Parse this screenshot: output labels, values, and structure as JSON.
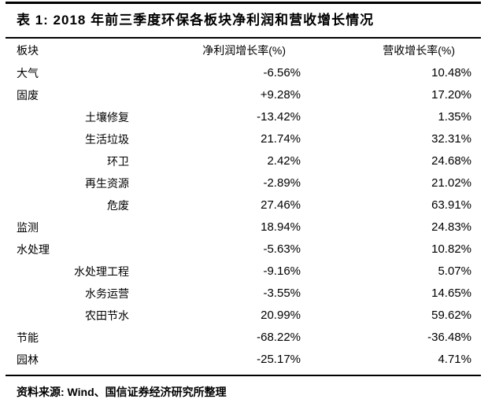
{
  "table": {
    "title": "表 1: 2018 年前三季度环保各板块净利润和营收增长情况",
    "columns": {
      "sector": "板块",
      "net_profit_growth": "净利润增长率(%)",
      "revenue_growth": "营收增长率(%)"
    },
    "rows": [
      {
        "sector": "大气",
        "level": 0,
        "net_profit": "-6.56%",
        "revenue": "10.48%"
      },
      {
        "sector": "固废",
        "level": 0,
        "net_profit": "+9.28%",
        "revenue": "17.20%"
      },
      {
        "sector": "土壤修复",
        "level": 1,
        "net_profit": "-13.42%",
        "revenue": "1.35%"
      },
      {
        "sector": "生活垃圾",
        "level": 1,
        "net_profit": "21.74%",
        "revenue": "32.31%"
      },
      {
        "sector": "环卫",
        "level": 1,
        "net_profit": "2.42%",
        "revenue": "24.68%"
      },
      {
        "sector": "再生资源",
        "level": 1,
        "net_profit": "-2.89%",
        "revenue": "21.02%"
      },
      {
        "sector": "危废",
        "level": 1,
        "net_profit": "27.46%",
        "revenue": "63.91%"
      },
      {
        "sector": "监测",
        "level": 0,
        "net_profit": "18.94%",
        "revenue": "24.83%"
      },
      {
        "sector": "水处理",
        "level": 0,
        "net_profit": "-5.63%",
        "revenue": "10.82%"
      },
      {
        "sector": "水处理工程",
        "level": 1,
        "net_profit": "-9.16%",
        "revenue": "5.07%"
      },
      {
        "sector": "水务运营",
        "level": 1,
        "net_profit": "-3.55%",
        "revenue": "14.65%"
      },
      {
        "sector": "农田节水",
        "level": 1,
        "net_profit": "20.99%",
        "revenue": "59.62%"
      },
      {
        "sector": "节能",
        "level": 0,
        "net_profit": "-68.22%",
        "revenue": "-36.48%"
      },
      {
        "sector": "园林",
        "level": 0,
        "net_profit": "-25.17%",
        "revenue": "4.71%"
      }
    ],
    "source": "资料来源: Wind、国信证券经济研究所整理"
  },
  "chart_data": {
    "type": "table",
    "title": "表 1: 2018 年前三季度环保各板块净利润和营收增长情况",
    "columns": [
      "板块",
      "净利润增长率(%)",
      "营收增长率(%)"
    ],
    "rows": [
      [
        "大气",
        -6.56,
        10.48
      ],
      [
        "固废",
        9.28,
        17.2
      ],
      [
        "土壤修复",
        -13.42,
        1.35
      ],
      [
        "生活垃圾",
        21.74,
        32.31
      ],
      [
        "环卫",
        2.42,
        24.68
      ],
      [
        "再生资源",
        -2.89,
        21.02
      ],
      [
        "危废",
        27.46,
        63.91
      ],
      [
        "监测",
        18.94,
        24.83
      ],
      [
        "水处理",
        -5.63,
        10.82
      ],
      [
        "水处理工程",
        -9.16,
        5.07
      ],
      [
        "水务运营",
        -3.55,
        14.65
      ],
      [
        "农田节水",
        20.99,
        59.62
      ],
      [
        "节能",
        -68.22,
        -36.48
      ],
      [
        "园林",
        -25.17,
        4.71
      ]
    ],
    "source": "资料来源: Wind、国信证券经济研究所整理"
  }
}
